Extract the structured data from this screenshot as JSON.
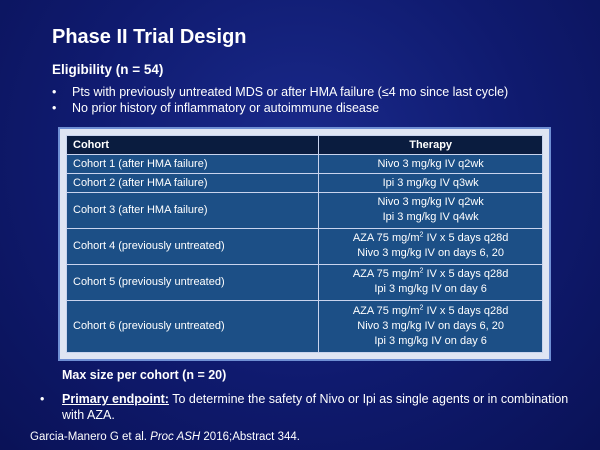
{
  "title": "Phase II Trial Design",
  "eligibility": {
    "heading": "Eligibility (n = 54)",
    "bullets": [
      "Pts with previously untreated MDS or after HMA failure (≤4 mo since last cycle)",
      "No prior history of inflammatory or autoimmune disease"
    ]
  },
  "table": {
    "headers": [
      "Cohort",
      "Therapy"
    ],
    "rows": [
      {
        "cohort": "Cohort 1 (after HMA failure)",
        "therapy": [
          "Nivo 3 mg/kg IV q2wk"
        ]
      },
      {
        "cohort": "Cohort 2 (after HMA failure)",
        "therapy": [
          "Ipi 3 mg/kg IV q3wk"
        ]
      },
      {
        "cohort": "Cohort 3 (after HMA failure)",
        "therapy": [
          "Nivo 3 mg/kg IV q2wk",
          "Ipi 3 mg/kg IV q4wk"
        ]
      },
      {
        "cohort": "Cohort 4 (previously untreated)",
        "therapy": [
          "AZA 75 mg/m",
          "IV x 5 days q28d",
          "Nivo 3 mg/kg IV on days 6, 20"
        ]
      },
      {
        "cohort": "Cohort 5 (previously untreated)",
        "therapy": [
          "AZA 75 mg/m",
          "IV x 5 days q28d",
          "Ipi 3 mg/kg IV on day 6"
        ]
      },
      {
        "cohort": "Cohort 6 (previously untreated)",
        "therapy": [
          "AZA 75 mg/m",
          "IV x 5 days q28d",
          "Nivo 3 mg/kg IV on days 6, 20",
          "Ipi 3 mg/kg IV on day 6"
        ]
      }
    ],
    "aza_superscript": "2"
  },
  "max_size": "Max size per cohort (n = 20)",
  "endpoint": {
    "label": "Primary endpoint:",
    "text": " To determine the safety of Nivo or Ipi as single agents or in combination with AZA."
  },
  "citation": {
    "authors": "Garcia-Manero G et al. ",
    "journal": "Proc ASH",
    "rest": " 2016;Abstract 344."
  },
  "bullet_char": "•"
}
